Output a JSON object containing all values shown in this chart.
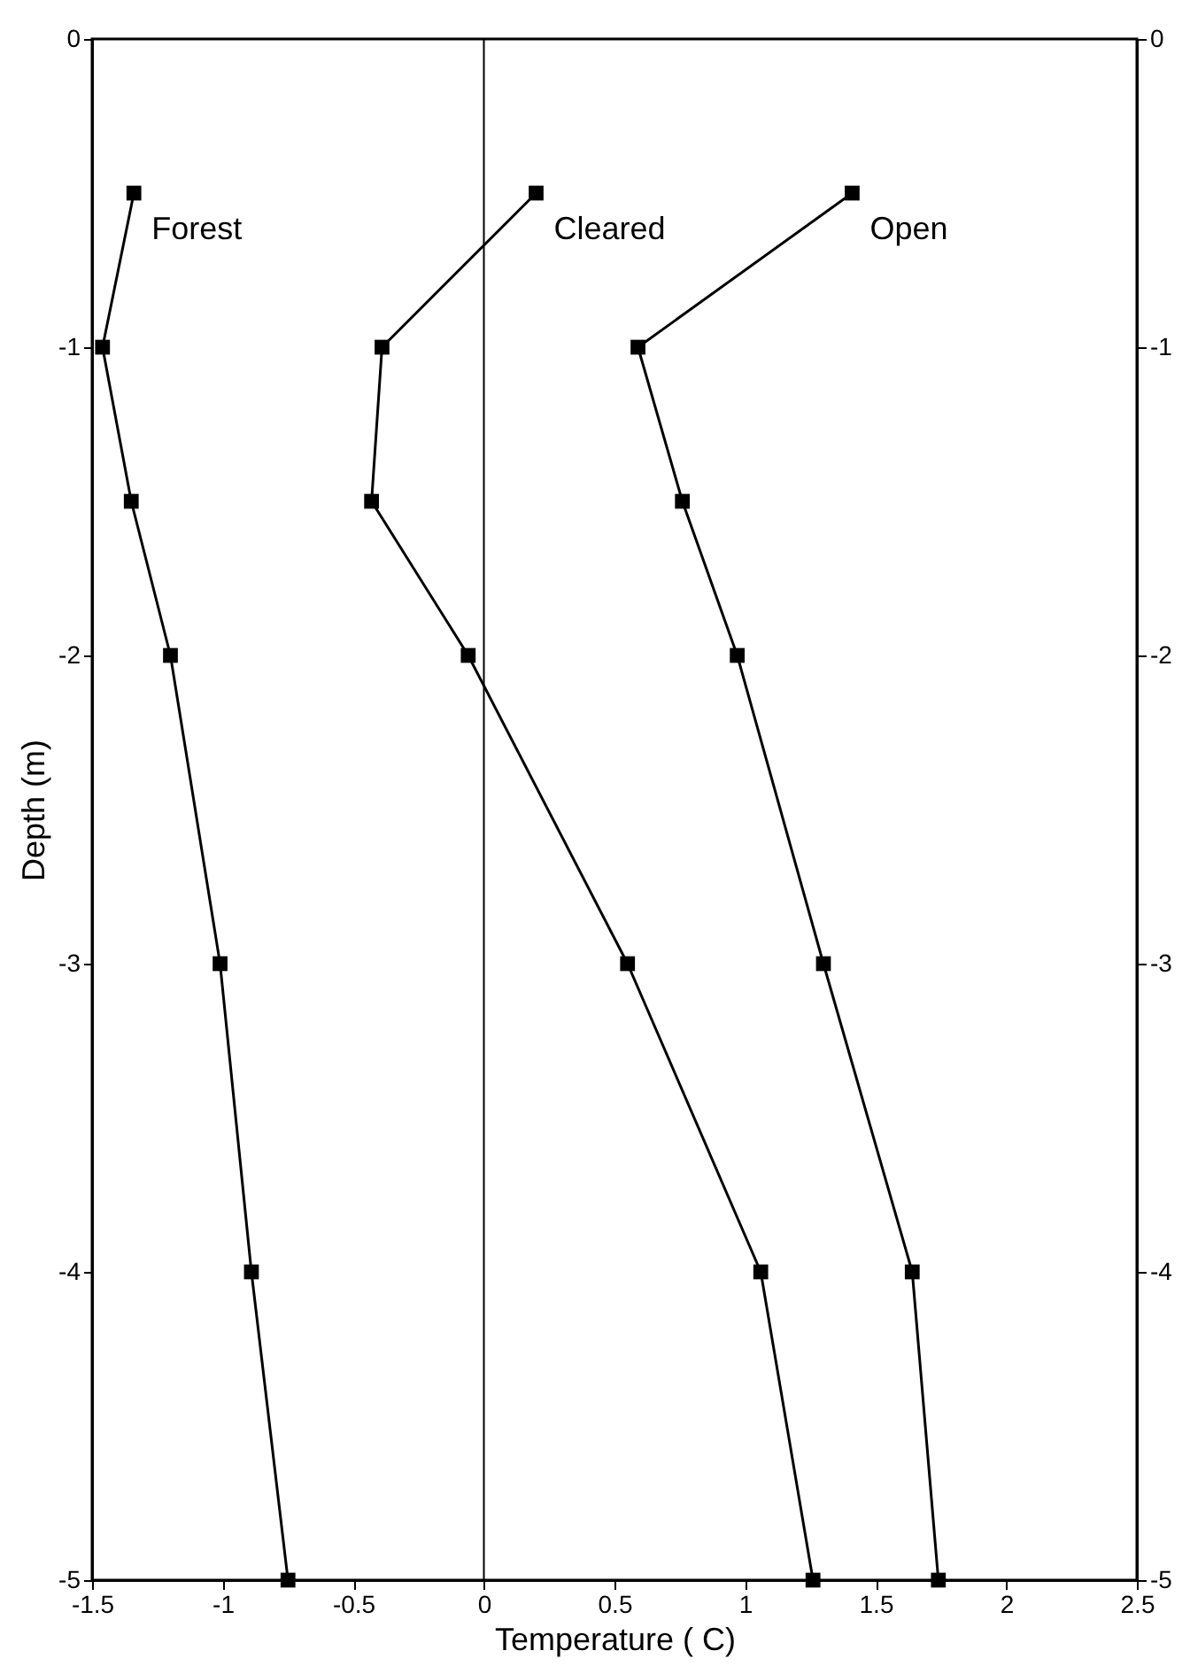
{
  "chart_data": {
    "type": "line",
    "xlabel": "Temperature ( C)",
    "ylabel": "Depth (m)",
    "xlim": [
      -1.5,
      2.5
    ],
    "xticks": [
      -1.5,
      -1,
      -0.5,
      0,
      0.5,
      1,
      1.5,
      2,
      2.5
    ],
    "ylim": [
      -5,
      0
    ],
    "yticks": [
      -5,
      -4,
      -3,
      -2,
      -1,
      0
    ],
    "y2lim": [
      -5,
      0
    ],
    "y2ticks": [
      -5,
      -4,
      -3,
      -2,
      -1,
      0
    ],
    "grid": false,
    "marker": "square",
    "line_style": "solid",
    "ref_lines": [
      {
        "axis": "x",
        "value": 0,
        "color": "#000000"
      }
    ],
    "series": [
      {
        "name": "Forest",
        "color": "#000000",
        "x": [
          -1.34,
          -1.46,
          -1.35,
          -1.2,
          -1.01,
          -0.89,
          -0.75
        ],
        "values": [
          -0.5,
          -1,
          -1.5,
          -2,
          -3,
          -4,
          -5
        ]
      },
      {
        "name": "Cleared",
        "color": "#000000",
        "x": [
          0.2,
          -0.39,
          -0.43,
          -0.06,
          0.55,
          1.06,
          1.26
        ],
        "values": [
          -0.5,
          -1,
          -1.5,
          -2,
          -3,
          -4,
          -5
        ]
      },
      {
        "name": "Open",
        "color": "#000000",
        "x": [
          1.41,
          0.59,
          0.76,
          0.97,
          1.3,
          1.64,
          1.74
        ],
        "values": [
          -0.5,
          -1,
          -1.5,
          -2,
          -3,
          -4,
          -5
        ]
      }
    ]
  }
}
